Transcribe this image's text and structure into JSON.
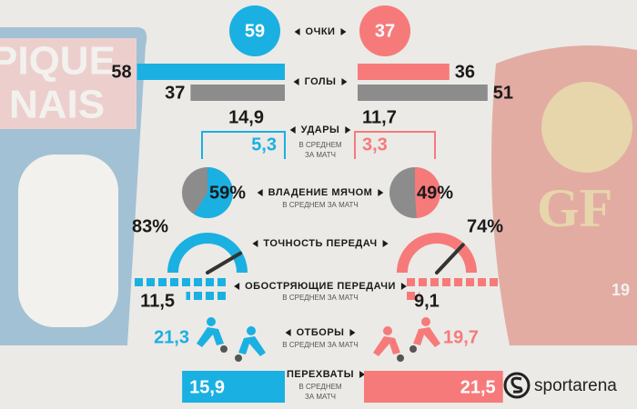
{
  "background": {
    "left_logo": [
      "PIQUE",
      "NAIS"
    ],
    "right_logo": "GF",
    "right_year": "19"
  },
  "brand": "sportarena",
  "points": {
    "label": "ОЧКИ",
    "home": 59,
    "away": 37
  },
  "goals": {
    "label": "ГОЛЫ",
    "home": [
      58,
      37
    ],
    "away": [
      36,
      51
    ]
  },
  "shots": {
    "label": "УДАРЫ",
    "sublabel": [
      "В СРЕДНЕМ",
      "ЗА МАТЧ"
    ],
    "home": [
      14.9,
      5.3
    ],
    "home_labels": [
      "14,9",
      "5,3"
    ],
    "away": [
      11.7,
      3.3
    ],
    "away_labels": [
      "11,7",
      "3,3"
    ]
  },
  "possession": {
    "label": "ВЛАДЕНИЕ МЯЧОМ",
    "sublabel": "В СРЕДНЕМ ЗА МАТЧ",
    "home": 59,
    "home_label": "59%",
    "away": 49,
    "away_label": "49%"
  },
  "passing": {
    "label": "ТОЧНОСТЬ ПЕРЕДАЧ",
    "home": 83,
    "home_label": "83%",
    "away": 74,
    "away_label": "74%"
  },
  "crosses": {
    "label": "ОБОСТРЯЮЩИЕ ПЕРЕДАЧИ",
    "sublabel": "В СРЕДНЕМ ЗА МАТЧ",
    "home": 11.5,
    "home_label": "11,5",
    "away": 9.1,
    "away_label": "9,1"
  },
  "tackles": {
    "label": "ОТБОРЫ",
    "sublabel": "В СРЕДНЕМ ЗА МАТЧ",
    "home": 21.3,
    "home_label": "21,3",
    "away": 19.7,
    "away_label": "19,7"
  },
  "interceptions": {
    "label": "ПЕРЕХВАТЫ",
    "sublabel": [
      "В СРЕДНЕМ",
      "ЗА МАТЧ"
    ],
    "home": 15.9,
    "home_label": "15,9",
    "away": 21.5,
    "away_label": "21,5"
  }
}
